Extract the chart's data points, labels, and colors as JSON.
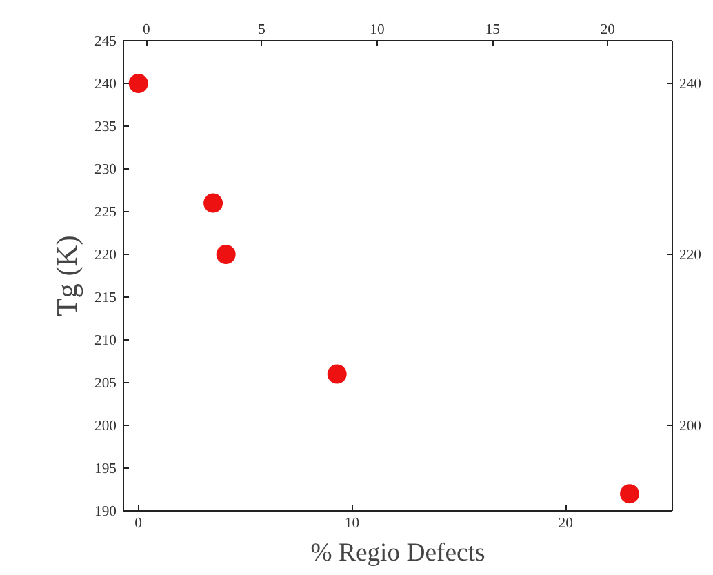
{
  "chart_data": {
    "type": "scatter",
    "xlabel": "% Regio Defects",
    "ylabel": "Tg (K)",
    "x": [
      0,
      3.5,
      4.1,
      9.3,
      23.0
    ],
    "series": [
      {
        "color": "#ee1111",
        "values": [
          240,
          226,
          220,
          206,
          192
        ]
      }
    ],
    "xlim": [
      -0.7,
      25
    ],
    "xticks": [
      0,
      10,
      20
    ],
    "x2lim": [
      -1,
      22.8
    ],
    "x2ticks": [
      0,
      5,
      10,
      15,
      20
    ],
    "ylim": [
      190,
      245
    ],
    "yticks": [
      190,
      195,
      200,
      205,
      210,
      215,
      220,
      225,
      230,
      235,
      240,
      245
    ],
    "y2lim": [
      190,
      245
    ],
    "y2ticks": [
      200,
      220,
      240
    ],
    "marker": "circle",
    "grid": false
  }
}
